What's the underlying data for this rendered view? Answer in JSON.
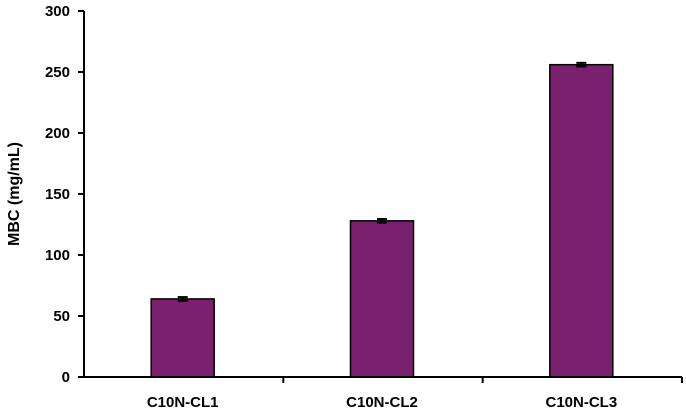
{
  "chart_data": {
    "type": "bar",
    "title": "",
    "xlabel": "",
    "ylabel": "MBC (mg/mL)",
    "categories": [
      "C10N-CL1",
      "C10N-CL2",
      "C10N-CL3"
    ],
    "values": [
      64,
      128,
      256
    ],
    "errors": [
      1.5,
      1.5,
      1.5
    ],
    "ylim": [
      0,
      300
    ],
    "yticks": [
      0,
      50,
      100,
      150,
      200,
      250,
      300
    ],
    "grid": false,
    "legend": "none",
    "bar_color": "#7b1f6f"
  }
}
